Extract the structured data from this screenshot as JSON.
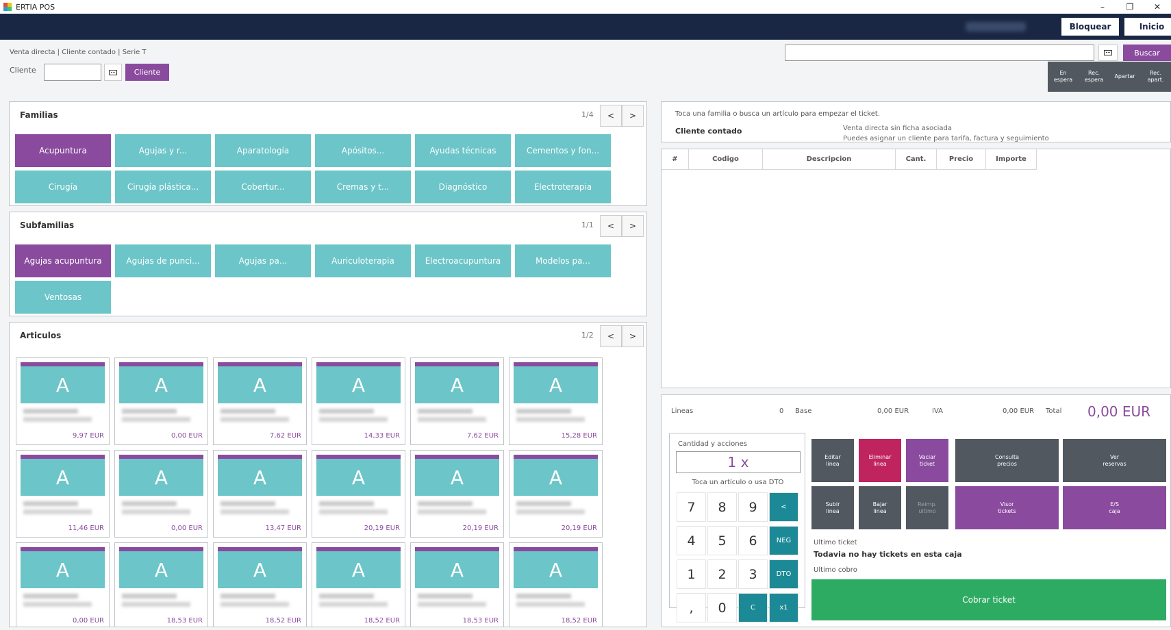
{
  "window": {
    "title": "ERTIA POS",
    "controls": [
      "–",
      "❐",
      "✕"
    ]
  },
  "nav": {
    "bloquear": "Bloquear",
    "inicio": "Inicio"
  },
  "header": {
    "breadcrumb": "Venta directa | Cliente contado | Serie T",
    "cliente_label": "Cliente",
    "cliente_button": "Cliente",
    "buscar_button": "Buscar",
    "actions": [
      {
        "line1": "En",
        "line2": "espera"
      },
      {
        "line1": "Rec.",
        "line2": "espera"
      },
      {
        "line1": "Apartar",
        "line2": ""
      },
      {
        "line1": "Rec.",
        "line2": "apart."
      }
    ]
  },
  "familias": {
    "title": "Familias",
    "pager": "1/4",
    "items": [
      "Acupuntura",
      "Agujas y r...",
      "Aparatología",
      "Apósitos...",
      "Ayudas técnicas",
      "Cementos y fon...",
      "Cirugía",
      "Cirugía plástica...",
      "Cobertur...",
      "Cremas y t...",
      "Diagnóstico",
      "Electroterapia"
    ]
  },
  "subfamilias": {
    "title": "Subfamilias",
    "pager": "1/1",
    "items": [
      "Agujas acupuntura",
      "Agujas de punci...",
      "Agujas pa...",
      "Auriculoterapia",
      "Electroacupuntura",
      "Modelos pa...",
      "Ventosas"
    ]
  },
  "articulos": {
    "title": "Articulos",
    "pager": "1/2",
    "placeholder_letter": "A",
    "prices": [
      "9,97 EUR",
      "0,00 EUR",
      "7,62 EUR",
      "14,33 EUR",
      "7,62 EUR",
      "15,28 EUR",
      "11,46 EUR",
      "0,00 EUR",
      "13,47 EUR",
      "20,19 EUR",
      "20,19 EUR",
      "20,19 EUR",
      "0,00 EUR",
      "18,53 EUR",
      "18,52 EUR",
      "18,52 EUR",
      "18,53 EUR",
      "18,52 EUR"
    ]
  },
  "arrows": {
    "prev": "<",
    "next": ">"
  },
  "ticket": {
    "hint": "Toca una familia o busca un artículo para empezar el ticket.",
    "client_name": "Cliente contado",
    "client_sub1": "Venta directa sin ficha asociada",
    "client_sub2": "Puedes asignar un cliente para tarifa, factura y seguimiento",
    "columns": [
      "#",
      "Codigo",
      "Descripcion",
      "Cant.",
      "Precio",
      "Importe"
    ]
  },
  "totals": {
    "lineas_label": "Lineas",
    "lineas_value": "0",
    "base_label": "Base",
    "base_value": "0,00 EUR",
    "iva_label": "IVA",
    "iva_value": "0,00 EUR",
    "total_label": "Total",
    "total_value": "0,00 EUR"
  },
  "cantidad": {
    "title": "Cantidad y acciones",
    "display": "1 x",
    "hint": "Toca un artículo o usa DTO",
    "keys": [
      "7",
      "8",
      "9",
      "<",
      "4",
      "5",
      "6",
      "NEG",
      "1",
      "2",
      "3",
      "DTO",
      ",",
      "0",
      "C",
      "x1"
    ]
  },
  "actions": {
    "editar": [
      "Editar",
      "linea"
    ],
    "eliminar": [
      "Eliminar",
      "linea"
    ],
    "vaciar": [
      "Vaciar",
      "ticket"
    ],
    "consulta": [
      "Consulta",
      "precios"
    ],
    "reservas": [
      "Ver",
      "reservas"
    ],
    "subir": [
      "Subir",
      "linea"
    ],
    "bajar": [
      "Bajar",
      "linea"
    ],
    "reimp": [
      "Reimp.",
      "ultimo"
    ],
    "visor": [
      "Visor",
      "tickets"
    ],
    "es_caja": [
      "E/S",
      "caja"
    ]
  },
  "ultimo": {
    "ticket_label": "Ultimo ticket",
    "ticket_value": "Todavia no hay tickets en esta caja",
    "cobro_label": "Ultimo cobro"
  },
  "cobrar": "Cobrar ticket",
  "colors": {
    "navy": "#1a2744",
    "purple": "#8a4a9e",
    "teal": "#6cc5c8",
    "dark_teal": "#1c8a96",
    "magenta": "#c0245f",
    "green": "#2eab62",
    "grey": "#525860"
  }
}
